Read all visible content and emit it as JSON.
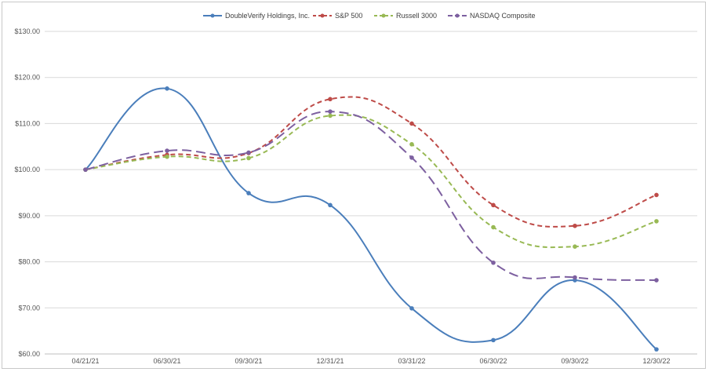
{
  "chart_data": {
    "type": "line",
    "title": "",
    "xlabel": "",
    "ylabel": "",
    "categories": [
      "04/21/21",
      "06/30/21",
      "09/30/21",
      "12/31/21",
      "03/31/22",
      "06/30/22",
      "09/30/22",
      "12/30/22"
    ],
    "y_tick_labels": [
      "$60.00",
      "$70.00",
      "$80.00",
      "$90.00",
      "$100.00",
      "$110.00",
      "$120.00",
      "$130.00"
    ],
    "y_ticks": [
      60,
      70,
      80,
      90,
      100,
      110,
      120,
      130
    ],
    "ylim": [
      60,
      130
    ],
    "grid": true,
    "legend_position": "top",
    "series": [
      {
        "name": "DoubleVerify Holdings, Inc.",
        "color": "#4a7ebb",
        "dash": "solid",
        "values": [
          100.0,
          117.6,
          94.9,
          92.3,
          69.9,
          63.0,
          76.0,
          61.0
        ]
      },
      {
        "name": "S&P 500",
        "color": "#be4b48",
        "dash": "dashed",
        "values": [
          100.0,
          103.2,
          103.6,
          115.3,
          110.0,
          92.3,
          87.8,
          94.5
        ]
      },
      {
        "name": "Russell 3000",
        "color": "#98b954",
        "dash": "dashed",
        "values": [
          100.0,
          102.8,
          102.5,
          111.7,
          105.5,
          87.5,
          83.3,
          88.8
        ]
      },
      {
        "name": "NASDAQ Composite",
        "color": "#7d60a0",
        "dash": "longdash",
        "values": [
          100.0,
          104.1,
          103.7,
          112.6,
          102.6,
          79.8,
          76.6,
          76.0
        ]
      }
    ]
  }
}
